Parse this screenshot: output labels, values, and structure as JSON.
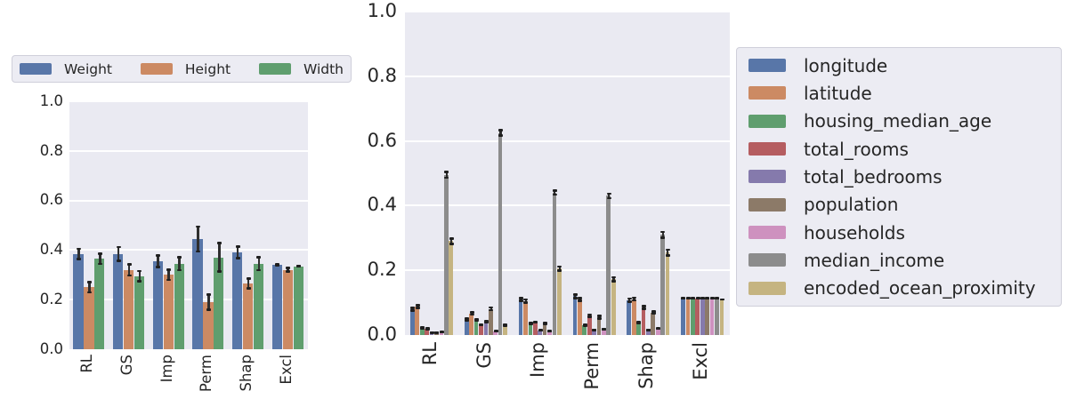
{
  "colors": {
    "page_bg": "#ffffff",
    "plot_bg": "#eaeaf2",
    "grid": "#ffffff",
    "text": "#262626",
    "error_bar": "#2e2e2e",
    "legend_bg": "#ececf3",
    "legend_border": "#cfcfda"
  },
  "chart_data": [
    {
      "type": "bar",
      "title": "",
      "xlabel": "",
      "ylabel": "",
      "ylim": [
        0,
        1
      ],
      "yticks": [
        "0.0",
        "0.2",
        "0.4",
        "0.6",
        "0.8",
        "1.0"
      ],
      "grid": true,
      "legend_position": "top",
      "categories": [
        "RL",
        "GS",
        "Imp",
        "Perm",
        "Shap",
        "Excl"
      ],
      "series": [
        {
          "name": "Weight",
          "color": "#5876a8",
          "values": [
            0.385,
            0.385,
            0.355,
            0.445,
            0.39,
            0.34
          ],
          "errors": [
            0.025,
            0.032,
            0.028,
            0.055,
            0.028,
            0.006
          ]
        },
        {
          "name": "Height",
          "color": "#cc8a63",
          "values": [
            0.25,
            0.32,
            0.3,
            0.19,
            0.265,
            0.32
          ],
          "errors": [
            0.025,
            0.027,
            0.025,
            0.035,
            0.025,
            0.012
          ]
        },
        {
          "name": "Width",
          "color": "#5f9e6e",
          "values": [
            0.365,
            0.295,
            0.345,
            0.37,
            0.345,
            0.335
          ],
          "errors": [
            0.025,
            0.025,
            0.03,
            0.062,
            0.03,
            0.005
          ]
        }
      ]
    },
    {
      "type": "bar",
      "title": "",
      "xlabel": "",
      "ylabel": "",
      "ylim": [
        0,
        1
      ],
      "yticks": [
        "0.0",
        "0.2",
        "0.4",
        "0.6",
        "0.8",
        "1.0"
      ],
      "grid": true,
      "legend_position": "right",
      "categories": [
        "RL",
        "GS",
        "Imp",
        "Perm",
        "Shap",
        "Excl"
      ],
      "series": [
        {
          "name": "longitude",
          "color": "#5876a8",
          "values": [
            0.08,
            0.048,
            0.11,
            0.12,
            0.108,
            0.113
          ],
          "errors": [
            0.008,
            0.006,
            0.008,
            0.009,
            0.008,
            0.004
          ]
        },
        {
          "name": "latitude",
          "color": "#cc8a63",
          "values": [
            0.088,
            0.067,
            0.105,
            0.11,
            0.111,
            0.113
          ],
          "errors": [
            0.008,
            0.007,
            0.008,
            0.008,
            0.008,
            0.004
          ]
        },
        {
          "name": "housing_median_age",
          "color": "#5f9e6e",
          "values": [
            0.022,
            0.046,
            0.035,
            0.03,
            0.038,
            0.113
          ],
          "errors": [
            0.005,
            0.006,
            0.005,
            0.005,
            0.005,
            0.004
          ]
        },
        {
          "name": "total_rooms",
          "color": "#b55d60",
          "values": [
            0.019,
            0.032,
            0.04,
            0.06,
            0.085,
            0.113
          ],
          "errors": [
            0.005,
            0.005,
            0.005,
            0.007,
            0.008,
            0.004
          ]
        },
        {
          "name": "total_bedrooms",
          "color": "#857aac",
          "values": [
            0.008,
            0.042,
            0.014,
            0.016,
            0.015,
            0.113
          ],
          "errors": [
            0.003,
            0.005,
            0.004,
            0.004,
            0.004,
            0.004
          ]
        },
        {
          "name": "population",
          "color": "#8c7a68",
          "values": [
            0.008,
            0.081,
            0.036,
            0.055,
            0.07,
            0.113
          ],
          "errors": [
            0.003,
            0.008,
            0.005,
            0.007,
            0.007,
            0.004
          ]
        },
        {
          "name": "households",
          "color": "#ce91bf",
          "values": [
            0.009,
            0.012,
            0.012,
            0.018,
            0.02,
            0.113
          ],
          "errors": [
            0.003,
            0.003,
            0.003,
            0.004,
            0.004,
            0.004
          ]
        },
        {
          "name": "median_income",
          "color": "#8c8c8c",
          "values": [
            0.495,
            0.625,
            0.44,
            0.43,
            0.31,
            0.113
          ],
          "errors": [
            0.012,
            0.012,
            0.01,
            0.01,
            0.012,
            0.004
          ]
        },
        {
          "name": "encoded_ocean_proximity",
          "color": "#c5b481",
          "values": [
            0.29,
            0.03,
            0.205,
            0.172,
            0.255,
            0.11
          ],
          "errors": [
            0.012,
            0.005,
            0.01,
            0.01,
            0.012,
            0.004
          ]
        }
      ]
    }
  ]
}
